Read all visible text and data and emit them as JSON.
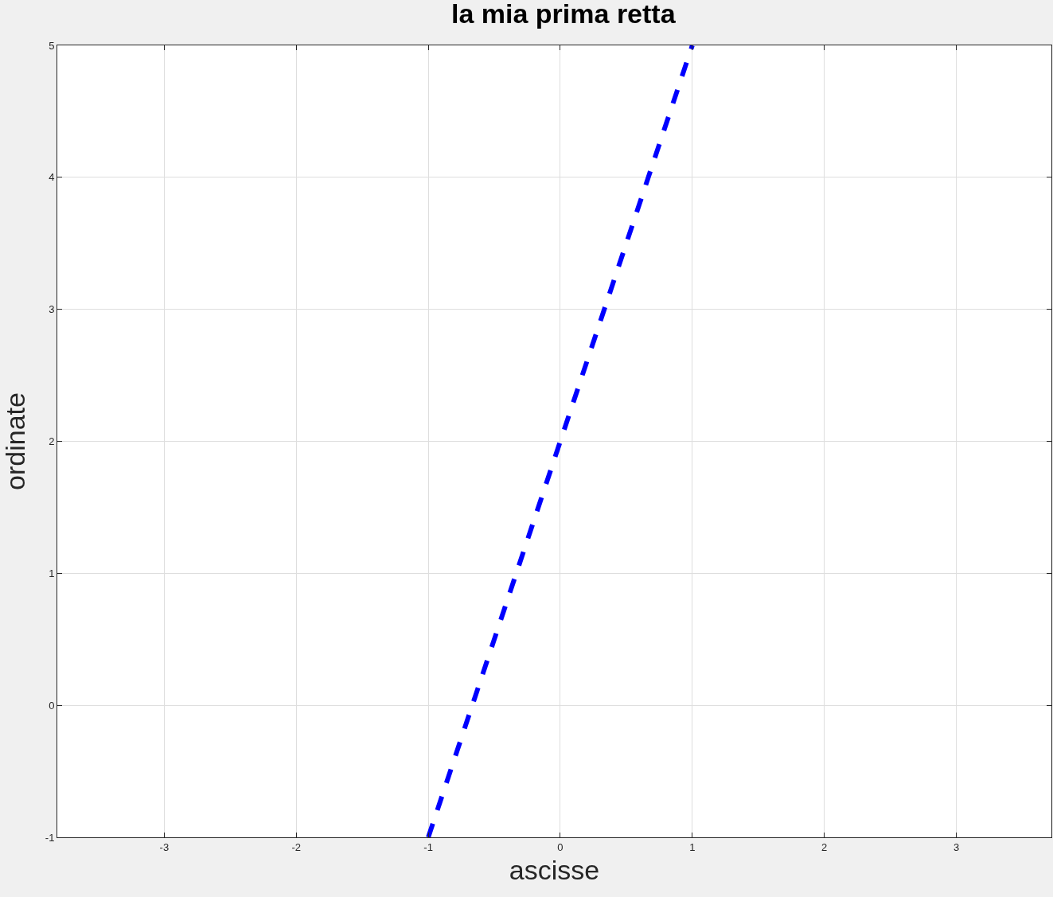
{
  "chart_data": {
    "type": "line",
    "title": "la mia prima retta",
    "xlabel": "ascisse",
    "ylabel": "ordinate",
    "x": [
      -1,
      1
    ],
    "series": [
      {
        "color": "#0000ff",
        "values": [
          -1,
          5
        ],
        "line_style": "dashed"
      }
    ],
    "xlim": [
      -3.81,
      3.72
    ],
    "xticks": [
      -3,
      -2,
      -1,
      0,
      1,
      2,
      3
    ],
    "ylim": [
      -1,
      5
    ],
    "yticks": [
      -1,
      0,
      1,
      2,
      3,
      4,
      5
    ],
    "grid": true,
    "marker": "none"
  }
}
